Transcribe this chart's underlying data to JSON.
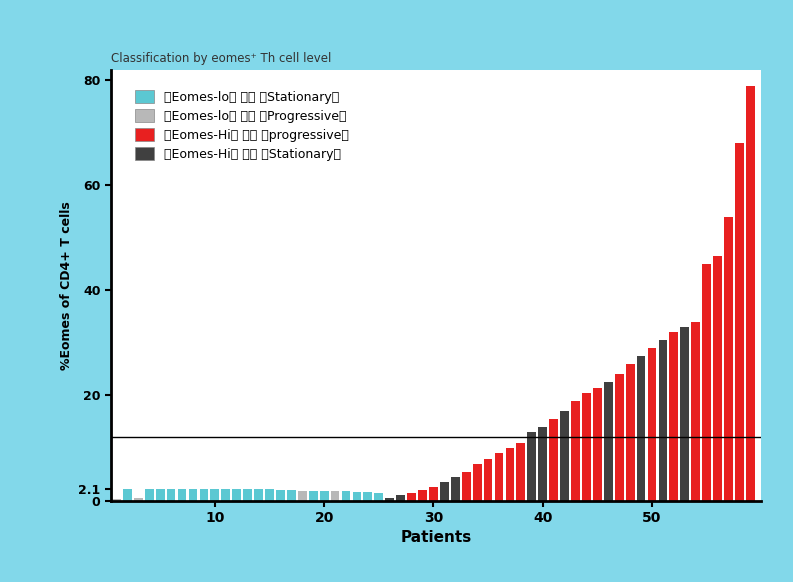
{
  "title": "Classification by eomes⁺ Th cell level",
  "xlabel": "Patients",
  "ylabel": "%Eomes of CD4+ T cells",
  "threshold_value": 12.1,
  "ylim": [
    0,
    82
  ],
  "yticks": [
    0,
    20,
    40,
    60,
    80
  ],
  "ytick_extra": 2.1,
  "xticks": [
    10,
    20,
    30,
    40,
    50
  ],
  "legend_labels": [
    "「Eomes-lo」 かつ 「Stationary」",
    "「Eomes-lo」 かつ 「Progressive」",
    "「Eomes-Hi」 かつ 「progressive」",
    "「Eomes-Hi」 かつ 「Stationary」"
  ],
  "legend_colors": [
    "#5BC8D2",
    "#B8B8B8",
    "#E82020",
    "#404040"
  ],
  "background_color": "#FFFFFF",
  "border_color": "#82D8EA",
  "bar_data": [
    {
      "x": 1,
      "val": 0.3,
      "color": "#B8B8B8"
    },
    {
      "x": 2,
      "val": 2.1,
      "color": "#5BC8D2"
    },
    {
      "x": 3,
      "val": 0.5,
      "color": "#B8B8B8"
    },
    {
      "x": 4,
      "val": 2.1,
      "color": "#5BC8D2"
    },
    {
      "x": 5,
      "val": 2.1,
      "color": "#5BC8D2"
    },
    {
      "x": 6,
      "val": 2.1,
      "color": "#5BC8D2"
    },
    {
      "x": 7,
      "val": 2.1,
      "color": "#5BC8D2"
    },
    {
      "x": 8,
      "val": 2.1,
      "color": "#5BC8D2"
    },
    {
      "x": 9,
      "val": 2.1,
      "color": "#5BC8D2"
    },
    {
      "x": 10,
      "val": 2.1,
      "color": "#5BC8D2"
    },
    {
      "x": 11,
      "val": 2.1,
      "color": "#5BC8D2"
    },
    {
      "x": 12,
      "val": 2.1,
      "color": "#5BC8D2"
    },
    {
      "x": 13,
      "val": 2.1,
      "color": "#5BC8D2"
    },
    {
      "x": 14,
      "val": 2.1,
      "color": "#5BC8D2"
    },
    {
      "x": 15,
      "val": 2.1,
      "color": "#5BC8D2"
    },
    {
      "x": 16,
      "val": 2.0,
      "color": "#5BC8D2"
    },
    {
      "x": 17,
      "val": 2.0,
      "color": "#5BC8D2"
    },
    {
      "x": 18,
      "val": 1.9,
      "color": "#B8B8B8"
    },
    {
      "x": 19,
      "val": 1.9,
      "color": "#5BC8D2"
    },
    {
      "x": 20,
      "val": 1.9,
      "color": "#5BC8D2"
    },
    {
      "x": 21,
      "val": 1.8,
      "color": "#B8B8B8"
    },
    {
      "x": 22,
      "val": 1.8,
      "color": "#5BC8D2"
    },
    {
      "x": 23,
      "val": 1.7,
      "color": "#5BC8D2"
    },
    {
      "x": 24,
      "val": 1.6,
      "color": "#5BC8D2"
    },
    {
      "x": 25,
      "val": 1.5,
      "color": "#5BC8D2"
    },
    {
      "x": 26,
      "val": 0.5,
      "color": "#404040"
    },
    {
      "x": 27,
      "val": 1.0,
      "color": "#404040"
    },
    {
      "x": 28,
      "val": 1.5,
      "color": "#E82020"
    },
    {
      "x": 29,
      "val": 2.0,
      "color": "#E82020"
    },
    {
      "x": 30,
      "val": 2.5,
      "color": "#E82020"
    },
    {
      "x": 31,
      "val": 3.5,
      "color": "#404040"
    },
    {
      "x": 32,
      "val": 4.5,
      "color": "#404040"
    },
    {
      "x": 33,
      "val": 5.5,
      "color": "#E82020"
    },
    {
      "x": 34,
      "val": 7.0,
      "color": "#E82020"
    },
    {
      "x": 35,
      "val": 8.0,
      "color": "#E82020"
    },
    {
      "x": 36,
      "val": 9.0,
      "color": "#E82020"
    },
    {
      "x": 37,
      "val": 10.0,
      "color": "#E82020"
    },
    {
      "x": 38,
      "val": 11.0,
      "color": "#E82020"
    },
    {
      "x": 39,
      "val": 13.0,
      "color": "#404040"
    },
    {
      "x": 40,
      "val": 14.0,
      "color": "#404040"
    },
    {
      "x": 41,
      "val": 15.5,
      "color": "#E82020"
    },
    {
      "x": 42,
      "val": 17.0,
      "color": "#404040"
    },
    {
      "x": 43,
      "val": 19.0,
      "color": "#E82020"
    },
    {
      "x": 44,
      "val": 20.5,
      "color": "#E82020"
    },
    {
      "x": 45,
      "val": 21.5,
      "color": "#E82020"
    },
    {
      "x": 46,
      "val": 22.5,
      "color": "#404040"
    },
    {
      "x": 47,
      "val": 24.0,
      "color": "#E82020"
    },
    {
      "x": 48,
      "val": 26.0,
      "color": "#E82020"
    },
    {
      "x": 49,
      "val": 27.5,
      "color": "#404040"
    },
    {
      "x": 50,
      "val": 29.0,
      "color": "#E82020"
    },
    {
      "x": 51,
      "val": 30.5,
      "color": "#404040"
    },
    {
      "x": 52,
      "val": 32.0,
      "color": "#E82020"
    },
    {
      "x": 53,
      "val": 33.0,
      "color": "#404040"
    },
    {
      "x": 54,
      "val": 34.0,
      "color": "#E82020"
    },
    {
      "x": 55,
      "val": 45.0,
      "color": "#E82020"
    },
    {
      "x": 56,
      "val": 46.5,
      "color": "#E82020"
    },
    {
      "x": 57,
      "val": 54.0,
      "color": "#E82020"
    },
    {
      "x": 58,
      "val": 68.0,
      "color": "#E82020"
    },
    {
      "x": 59,
      "val": 79.0,
      "color": "#E82020"
    }
  ]
}
